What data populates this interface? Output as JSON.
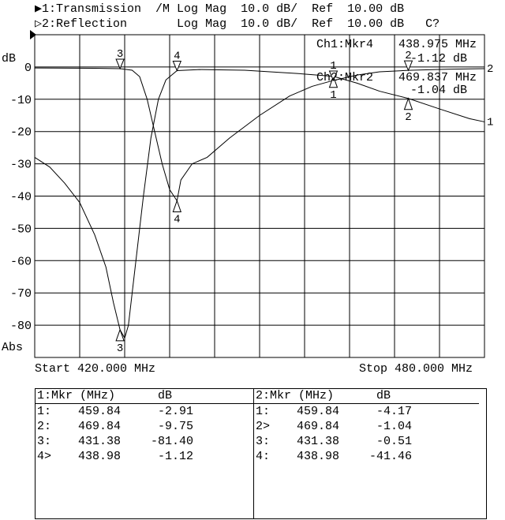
{
  "header": {
    "ch1": "▶1:Transmission  /M Log Mag  10.0 dB/  Ref  10.00 dB",
    "ch2": "▷2:Reflection       Log Mag  10.0 dB/  Ref  10.00 dB   C?"
  },
  "readout": {
    "ch1_label": "Ch1:Mkr4",
    "ch1_freq": "438.975 MHz",
    "ch1_val": "-1.12 dB",
    "ch2_label": "Ch2:Mkr2",
    "ch2_freq": "469.837 MHz",
    "ch2_val": "-1.04 dB"
  },
  "axis": {
    "unit": "dB",
    "format": "Abs",
    "start": "Start 420.000 MHz",
    "stop": "Stop 480.000 MHz"
  },
  "chart_data": {
    "type": "line",
    "xlim": [
      420,
      480
    ],
    "ylim": [
      -90,
      10
    ],
    "grid": true,
    "ytick_labels": [
      "0",
      "-10",
      "-20",
      "-30",
      "-40",
      "-50",
      "-60",
      "-70",
      "-80"
    ],
    "yticks": [
      0,
      -10,
      -20,
      -30,
      -40,
      -50,
      -60,
      -70,
      -80
    ],
    "ylabel": "dB",
    "series": [
      {
        "name": "1",
        "x": [
          420,
          422,
          424,
          426,
          428,
          429.5,
          430.5,
          431.38,
          432,
          432.5,
          433.5,
          434.5,
          435.5,
          436.5,
          437.5,
          438.98,
          442,
          448,
          455,
          459.84,
          463,
          466,
          469.84,
          474,
          478,
          480
        ],
        "y": [
          -28,
          -31,
          -36,
          -42,
          -52,
          -62,
          -73,
          -81.4,
          -84,
          -80,
          -60,
          -40,
          -22,
          -10,
          -4,
          -1.12,
          -0.8,
          -1.0,
          -2,
          -2.91,
          -5,
          -7.5,
          -9.75,
          -13,
          -16,
          -17
        ]
      },
      {
        "name": "2",
        "x": [
          420,
          428,
          431.38,
          433,
          434,
          435,
          436,
          437,
          438,
          438.98,
          439.5,
          441,
          443,
          446,
          450,
          454,
          457,
          459.84,
          463,
          466,
          469.84,
          475,
          480
        ],
        "y": [
          -0.3,
          -0.4,
          -0.51,
          -1,
          -3,
          -10,
          -20,
          -30,
          -38,
          -41.46,
          -35,
          -30,
          -28,
          -22,
          -15,
          -9,
          -6,
          -4.17,
          -2.5,
          -1.5,
          -1.04,
          -0.7,
          -0.5
        ]
      }
    ],
    "markers": [
      {
        "trace": 1,
        "label": "1",
        "x": 459.84,
        "y": -2.91
      },
      {
        "trace": 1,
        "label": "2",
        "x": 469.84,
        "y": -9.75
      },
      {
        "trace": 1,
        "label": "3",
        "x": 431.38,
        "y": -81.4
      },
      {
        "trace": 1,
        "label": "4",
        "x": 438.98,
        "y": -1.12
      },
      {
        "trace": 2,
        "label": "1",
        "x": 459.84,
        "y": -4.17
      },
      {
        "trace": 2,
        "label": "2",
        "x": 469.84,
        "y": -1.04
      },
      {
        "trace": 2,
        "label": "3",
        "x": 431.38,
        "y": -0.51
      },
      {
        "trace": 2,
        "label": "4",
        "x": 438.98,
        "y": -41.46
      }
    ]
  },
  "table": {
    "ch1": {
      "header": "1:Mkr (MHz)      dB",
      "rows": [
        {
          "id": "1:",
          "f": "459.84",
          "v": "-2.91"
        },
        {
          "id": "2:",
          "f": "469.84",
          "v": "-9.75"
        },
        {
          "id": "3:",
          "f": "431.38",
          "v": "-81.40"
        },
        {
          "id": "4>",
          "f": "438.98",
          "v": "-1.12"
        }
      ]
    },
    "ch2": {
      "header": "2:Mkr (MHz)      dB",
      "rows": [
        {
          "id": "1:",
          "f": "459.84",
          "v": "-4.17"
        },
        {
          "id": "2>",
          "f": "469.84",
          "v": "-1.04"
        },
        {
          "id": "3:",
          "f": "431.38",
          "v": "-0.51"
        },
        {
          "id": "4:",
          "f": "438.98",
          "v": "-41.46"
        }
      ]
    }
  }
}
